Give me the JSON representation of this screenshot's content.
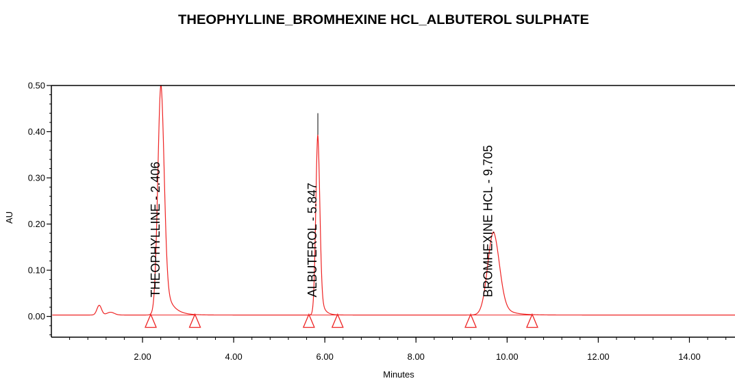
{
  "chart_data": {
    "type": "line",
    "title": "THEOPHYLLINE_BROMHEXINE HCL_ALBUTEROL SULPHATE",
    "xlabel": "Minutes",
    "ylabel": "AU",
    "xlim": [
      0,
      15.0
    ],
    "ylim": [
      -0.045,
      0.5
    ],
    "x_ticks": [
      {
        "value": 2,
        "label": "2.00"
      },
      {
        "value": 4,
        "label": "4.00"
      },
      {
        "value": 6,
        "label": "6.00"
      },
      {
        "value": 8,
        "label": "8.00"
      },
      {
        "value": 10,
        "label": "10.00"
      },
      {
        "value": 12,
        "label": "12.00"
      },
      {
        "value": 14,
        "label": "14.00"
      }
    ],
    "y_ticks": [
      {
        "value": 0.0,
        "label": "0.00"
      },
      {
        "value": 0.1,
        "label": "0.10"
      },
      {
        "value": 0.2,
        "label": "0.20"
      },
      {
        "value": 0.3,
        "label": "0.30"
      },
      {
        "value": 0.4,
        "label": "0.40"
      },
      {
        "value": 0.5,
        "label": "0.50"
      }
    ],
    "series_color": "#ee2222",
    "baseline_au": 0.003,
    "peaks": [
      {
        "label": "THEOPHYLLINE - 2.406",
        "rt": 2.406,
        "height": 0.5,
        "start": 2.18,
        "end": 3.15,
        "width": 0.07,
        "tail": 0.16,
        "marker_top": 0.5
      },
      {
        "label": "ALBUTEROL - 5.847",
        "rt": 5.847,
        "height": 0.39,
        "start": 5.65,
        "end": 6.28,
        "width": 0.045,
        "tail": 0.08,
        "marker_top": 0.44
      },
      {
        "label": "BROMHEXINE HCL - 9.705",
        "rt": 9.705,
        "height": 0.18,
        "start": 9.2,
        "end": 10.55,
        "width": 0.13,
        "tail": 0.22,
        "marker_top": 0.18
      }
    ],
    "minor_peaks": [
      {
        "rt": 1.05,
        "height": 0.021,
        "width": 0.05
      },
      {
        "rt": 1.3,
        "height": 0.006,
        "width": 0.08
      }
    ]
  }
}
